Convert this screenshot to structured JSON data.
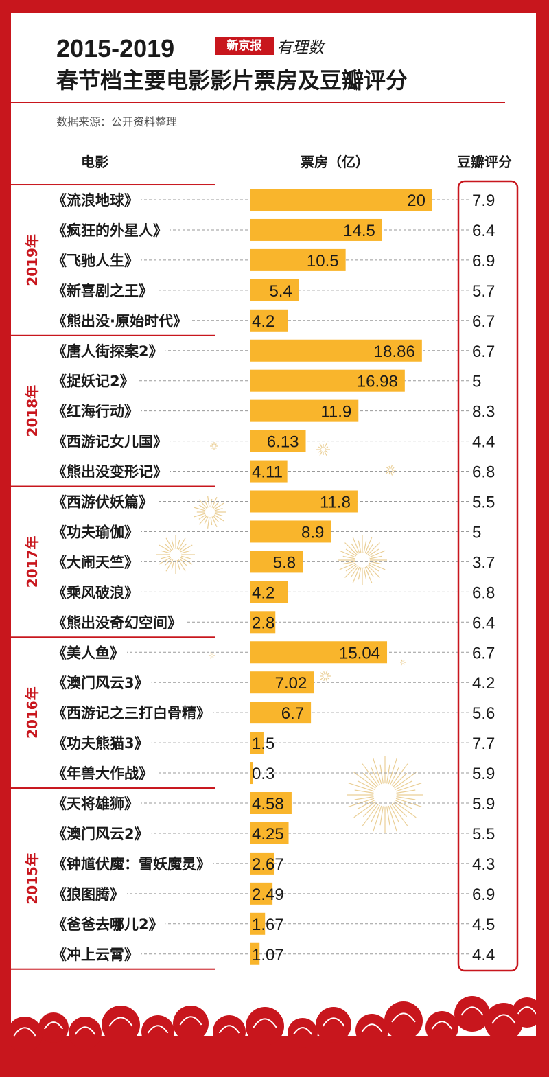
{
  "header": {
    "title_line1": "2015-2019",
    "title_line2": "春节档主要电影影片票房及豆瓣评分",
    "logo_box": "新京报",
    "logo_script": "有理数",
    "source": "数据来源：公开资料整理"
  },
  "columns": {
    "movie": "电影",
    "box_office": "票房（亿）",
    "rating": "豆瓣评分"
  },
  "colors": {
    "background": "#c8161d",
    "bar": "#f9b52c",
    "accent": "#c8161d",
    "decoration": "#e7c785"
  },
  "chart_data": {
    "type": "bar",
    "orientation": "horizontal",
    "series": [
      {
        "name": "票房（亿）",
        "key": "box_office"
      },
      {
        "name": "豆瓣评分",
        "key": "rating"
      }
    ],
    "groups": [
      {
        "year": "2019年",
        "movies": [
          {
            "name": "《流浪地球》",
            "box_office": "20",
            "rating": "7.9"
          },
          {
            "name": "《疯狂的外星人》",
            "box_office": "14.5",
            "rating": "6.4"
          },
          {
            "name": "《飞驰人生》",
            "box_office": "10.5",
            "rating": "6.9"
          },
          {
            "name": "《新喜剧之王》",
            "box_office": "5.4",
            "rating": "5.7"
          },
          {
            "name": "《熊出没·原始时代》",
            "box_office": "4.2",
            "rating": "6.7"
          }
        ]
      },
      {
        "year": "2018年",
        "movies": [
          {
            "name": "《唐人街探案2》",
            "box_office": "18.86",
            "rating": "6.7"
          },
          {
            "name": "《捉妖记2》",
            "box_office": "16.98",
            "rating": "5"
          },
          {
            "name": "《红海行动》",
            "box_office": "11.9",
            "rating": "8.3"
          },
          {
            "name": "《西游记女儿国》",
            "box_office": "6.13",
            "rating": "4.4"
          },
          {
            "name": "《熊出没变形记》",
            "box_office": "4.11",
            "rating": "6.8"
          }
        ]
      },
      {
        "year": "2017年",
        "movies": [
          {
            "name": "《西游伏妖篇》",
            "box_office": "11.8",
            "rating": "5.5"
          },
          {
            "name": "《功夫瑜伽》",
            "box_office": "8.9",
            "rating": "5"
          },
          {
            "name": "《大闹天竺》",
            "box_office": "5.8",
            "rating": "3.7"
          },
          {
            "name": "《乘风破浪》",
            "box_office": "4.2",
            "rating": "6.8"
          },
          {
            "name": "《熊出没奇幻空间》",
            "box_office": "2.8",
            "rating": "6.4"
          }
        ]
      },
      {
        "year": "2016年",
        "movies": [
          {
            "name": "《美人鱼》",
            "box_office": "15.04",
            "rating": "6.7"
          },
          {
            "name": "《澳门风云3》",
            "box_office": "7.02",
            "rating": "4.2"
          },
          {
            "name": "《西游记之三打白骨精》",
            "box_office": "6.7",
            "rating": "5.6"
          },
          {
            "name": "《功夫熊猫3》",
            "box_office": "1.5",
            "rating": "7.7"
          },
          {
            "name": "《年兽大作战》",
            "box_office": "0.3",
            "rating": "5.9"
          }
        ]
      },
      {
        "year": "2015年",
        "movies": [
          {
            "name": "《天将雄狮》",
            "box_office": "4.58",
            "rating": "5.9"
          },
          {
            "name": "《澳门风云2》",
            "box_office": "4.25",
            "rating": "5.5"
          },
          {
            "name": "《钟馗伏魔：雪妖魔灵》",
            "box_office": "2.67",
            "rating": "4.3"
          },
          {
            "name": "《狼图腾》",
            "box_office": "2.49",
            "rating": "6.9"
          },
          {
            "name": "《爸爸去哪儿2》",
            "box_office": "1.67",
            "rating": "4.5"
          },
          {
            "name": "《冲上云霄》",
            "box_office": "1.07",
            "rating": "4.4"
          }
        ]
      }
    ]
  }
}
